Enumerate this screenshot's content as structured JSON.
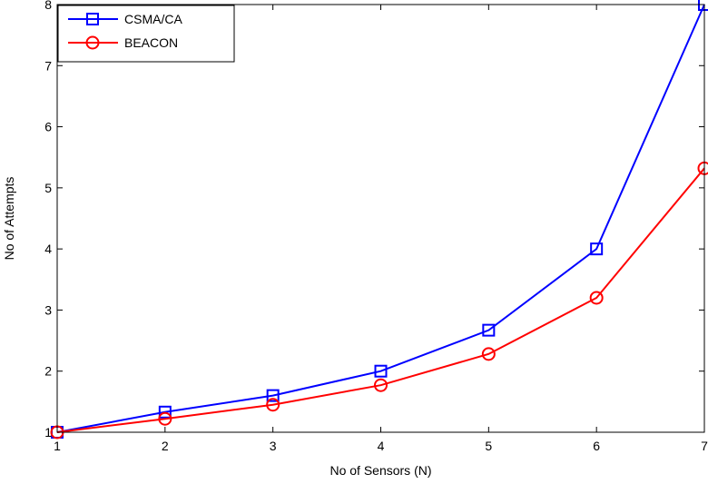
{
  "chart_data": {
    "type": "line",
    "title": "",
    "xlabel": "No of Sensors (N)",
    "ylabel": "No of Attempts",
    "x": [
      1,
      2,
      3,
      4,
      5,
      6,
      7
    ],
    "xticks": [
      "1",
      "2",
      "3",
      "4",
      "5",
      "6",
      "7"
    ],
    "yticks": [
      "1",
      "2",
      "3",
      "4",
      "5",
      "6",
      "7",
      "8"
    ],
    "xlim": [
      1,
      7
    ],
    "ylim": [
      1,
      8
    ],
    "grid": false,
    "legend_position": "top-left",
    "series": [
      {
        "name": "CSMA/CA",
        "color": "#0000ff",
        "marker": "square",
        "values": [
          1.0,
          1.33,
          1.6,
          2.0,
          2.67,
          4.0,
          8.0
        ]
      },
      {
        "name": "BEACON",
        "color": "#ff0000",
        "marker": "circle",
        "values": [
          1.0,
          1.22,
          1.45,
          1.77,
          2.28,
          3.2,
          5.32
        ]
      }
    ]
  }
}
